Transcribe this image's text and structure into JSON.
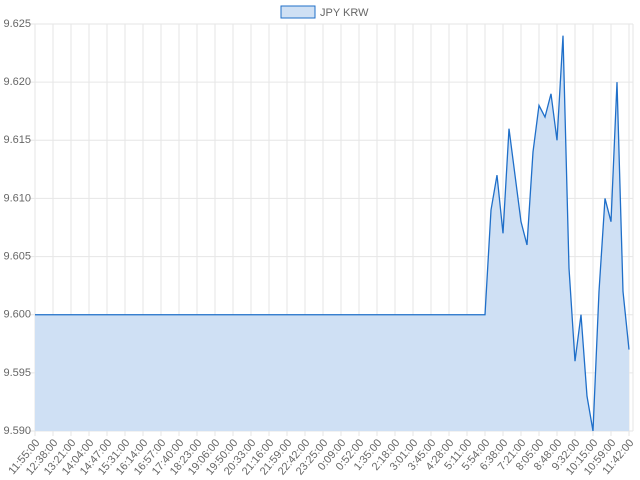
{
  "chart_data": {
    "type": "line",
    "categories": [
      "11:55:00",
      null,
      null,
      "12:38:00",
      null,
      null,
      "13:21:00",
      null,
      null,
      "14:04:00",
      null,
      null,
      "14:47:00",
      null,
      null,
      "15:31:00",
      null,
      null,
      "16:14:00",
      null,
      null,
      "16:57:00",
      null,
      null,
      "17:40:00",
      null,
      null,
      "18:23:00",
      null,
      null,
      "19:06:00",
      null,
      null,
      "19:50:00",
      null,
      null,
      "20:33:00",
      null,
      null,
      "21:16:00",
      null,
      null,
      "21:59:00",
      null,
      null,
      "22:42:00",
      null,
      null,
      "23:25:00",
      null,
      null,
      "0:09:00",
      null,
      null,
      "0:52:00",
      null,
      null,
      "1:35:00",
      null,
      null,
      "2:18:00",
      null,
      null,
      "3:01:00",
      null,
      null,
      "3:45:00",
      null,
      null,
      "4:28:00",
      null,
      null,
      "5:11:00",
      null,
      null,
      "5:54:00",
      null,
      null,
      "6:38:00",
      null,
      null,
      "7:21:00",
      null,
      null,
      "8:05:00",
      null,
      null,
      "8:48:00",
      null,
      null,
      "9:32:00",
      null,
      null,
      "10:15:00",
      null,
      null,
      "10:59:00",
      null,
      null,
      "11:42:00"
    ],
    "series": [
      {
        "name": "JPY KRW",
        "color": "#1f6fc9",
        "fill": "#cfe0f4",
        "values": [
          9.6,
          9.6,
          9.6,
          9.6,
          9.6,
          9.6,
          9.6,
          9.6,
          9.6,
          9.6,
          9.6,
          9.6,
          9.6,
          9.6,
          9.6,
          9.6,
          9.6,
          9.6,
          9.6,
          9.6,
          9.6,
          9.6,
          9.6,
          9.6,
          9.6,
          9.6,
          9.6,
          9.6,
          9.6,
          9.6,
          9.6,
          9.6,
          9.6,
          9.6,
          9.6,
          9.6,
          9.6,
          9.6,
          9.6,
          9.6,
          9.6,
          9.6,
          9.6,
          9.6,
          9.6,
          9.6,
          9.6,
          9.6,
          9.6,
          9.6,
          9.6,
          9.6,
          9.6,
          9.6,
          9.6,
          9.6,
          9.6,
          9.6,
          9.6,
          9.6,
          9.6,
          9.6,
          9.6,
          9.6,
          9.6,
          9.6,
          9.6,
          9.6,
          9.6,
          9.6,
          9.6,
          9.6,
          9.6,
          9.6,
          9.6,
          9.6,
          9.609,
          9.612,
          9.607,
          9.616,
          9.612,
          9.608,
          9.606,
          9.614,
          9.618,
          9.617,
          9.619,
          9.615,
          9.624,
          9.604,
          9.596,
          9.6,
          9.593,
          9.59,
          9.602,
          9.61,
          9.608,
          9.62,
          9.602,
          9.597
        ]
      }
    ],
    "ylim": [
      9.59,
      9.625
    ],
    "yticks": [
      {
        "value": 9.59,
        "label": "9.590"
      },
      9.595,
      {
        "value": 9.6,
        "label": "9.600"
      },
      9.605,
      {
        "value": 9.61,
        "label": "9.610"
      },
      9.615,
      {
        "value": 9.62,
        "label": "9.620"
      },
      9.625
    ],
    "grid": true,
    "legend": "top"
  }
}
